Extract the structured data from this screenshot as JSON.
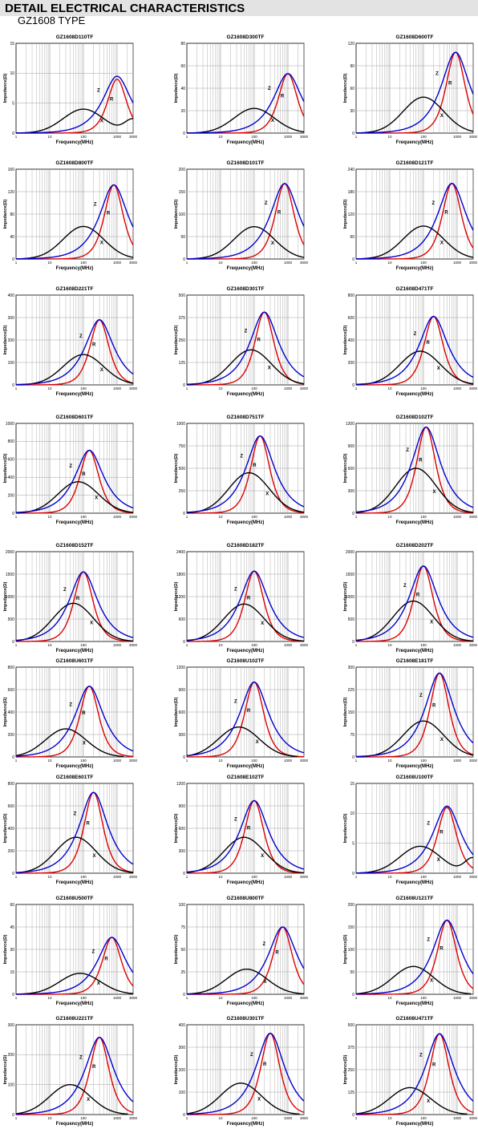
{
  "header": {
    "title": "DETAIL ELECTRICAL CHARACTERISTICS",
    "subtitle": "GZ1608 TYPE"
  },
  "colors": {
    "z": "#0000cc",
    "r": "#dd0000",
    "x": "#000000",
    "grid": "#a0a0a0",
    "header_bg": "#e3e3e3"
  },
  "axis_text": {
    "xlabel": "Frequency(MHz)",
    "ylabel": "Impedance(Ω)",
    "xticks": [
      "1",
      "10",
      "100",
      "1000",
      "3000"
    ]
  },
  "chart_data": [
    {
      "type": "line",
      "title": "GZ1608D110TF",
      "xlabel": "Frequency(MHz)",
      "ylabel": "Impedance(Ω)",
      "xscale": "log",
      "xlim": [
        1,
        3000
      ],
      "ylim": [
        0,
        15
      ],
      "yticks": [
        0,
        5,
        10,
        15
      ],
      "peak_freq": 1000,
      "peak_z": 9.5,
      "peak_r": 9,
      "x_peak": 4,
      "x_peak_freq": 100,
      "x_tail": "rise",
      "series": [
        {
          "name": "Z"
        },
        {
          "name": "R"
        },
        {
          "name": "X"
        }
      ]
    },
    {
      "type": "line",
      "title": "GZ1608D300TF",
      "xlabel": "Frequency(MHz)",
      "ylabel": "Impedance(Ω)",
      "xscale": "log",
      "xlim": [
        1,
        3000
      ],
      "ylim": [
        0,
        80
      ],
      "yticks": [
        0,
        20,
        40,
        60,
        80
      ],
      "peak_freq": 1000,
      "peak_z": 53,
      "peak_r": 53,
      "x_peak": 22,
      "x_peak_freq": 100,
      "x_tail": "fall",
      "series": [
        {
          "name": "Z"
        },
        {
          "name": "R"
        },
        {
          "name": "X"
        }
      ]
    },
    {
      "type": "line",
      "title": "GZ1608D600TF",
      "xlabel": "Frequency(MHz)",
      "ylabel": "Impedance(Ω)",
      "xscale": "log",
      "xlim": [
        1,
        3000
      ],
      "ylim": [
        0,
        120
      ],
      "yticks": [
        0,
        30,
        60,
        90,
        120
      ],
      "peak_freq": 900,
      "peak_z": 108,
      "peak_r": 108,
      "x_peak": 48,
      "x_peak_freq": 100,
      "x_tail": "fall",
      "series": [
        {
          "name": "Z"
        },
        {
          "name": "R"
        },
        {
          "name": "X"
        }
      ]
    },
    {
      "type": "line",
      "title": "GZ1608D800TF",
      "xlabel": "Frequency(MHz)",
      "ylabel": "Impedance(Ω)",
      "xscale": "log",
      "xlim": [
        1,
        3000
      ],
      "ylim": [
        0,
        160
      ],
      "yticks": [
        0,
        40,
        80,
        120,
        160
      ],
      "peak_freq": 800,
      "peak_z": 132,
      "peak_r": 132,
      "x_peak": 58,
      "x_peak_freq": 100,
      "x_tail": "fall",
      "series": [
        {
          "name": "Z"
        },
        {
          "name": "R"
        },
        {
          "name": "X"
        }
      ]
    },
    {
      "type": "line",
      "title": "GZ1608D101TF",
      "xlabel": "Frequency(MHz)",
      "ylabel": "Impedance(Ω)",
      "xscale": "log",
      "xlim": [
        1,
        3000
      ],
      "ylim": [
        0,
        200
      ],
      "yticks": [
        0,
        50,
        100,
        150,
        200
      ],
      "peak_freq": 800,
      "peak_z": 168,
      "peak_r": 168,
      "x_peak": 72,
      "x_peak_freq": 100,
      "x_tail": "fall",
      "series": [
        {
          "name": "Z"
        },
        {
          "name": "R"
        },
        {
          "name": "X"
        }
      ]
    },
    {
      "type": "line",
      "title": "GZ1608D121TF",
      "xlabel": "Frequency(MHz)",
      "ylabel": "Impedance(Ω)",
      "xscale": "log",
      "xlim": [
        1,
        3000
      ],
      "ylim": [
        0,
        240
      ],
      "yticks": [
        0,
        60,
        120,
        180,
        240
      ],
      "peak_freq": 700,
      "peak_z": 202,
      "peak_r": 202,
      "x_peak": 88,
      "x_peak_freq": 100,
      "x_tail": "fall",
      "series": [
        {
          "name": "Z"
        },
        {
          "name": "R"
        },
        {
          "name": "X"
        }
      ]
    },
    {
      "type": "line",
      "title": "GZ1608D221TF",
      "xlabel": "Frequency(MHz)",
      "ylabel": "Impedance(Ω)",
      "xscale": "log",
      "xlim": [
        1,
        3000
      ],
      "ylim": [
        0,
        400
      ],
      "yticks": [
        0,
        100,
        200,
        300,
        400
      ],
      "peak_freq": 300,
      "peak_z": 290,
      "peak_r": 290,
      "x_peak": 135,
      "x_peak_freq": 100,
      "x_tail": "fall",
      "series": [
        {
          "name": "Z"
        },
        {
          "name": "R"
        },
        {
          "name": "X"
        }
      ]
    },
    {
      "type": "line",
      "title": "GZ1608D301TF",
      "xlabel": "Frequency(MHz)",
      "ylabel": "Impedance(Ω)",
      "xscale": "log",
      "xlim": [
        1,
        3000
      ],
      "ylim": [
        0,
        500
      ],
      "yticks": [
        0,
        125,
        250,
        375,
        500
      ],
      "peak_freq": 200,
      "peak_z": 405,
      "peak_r": 405,
      "x_peak": 195,
      "x_peak_freq": 80,
      "x_tail": "fall",
      "series": [
        {
          "name": "Z"
        },
        {
          "name": "R"
        },
        {
          "name": "X"
        }
      ]
    },
    {
      "type": "line",
      "title": "GZ1608D471TF",
      "xlabel": "Frequency(MHz)",
      "ylabel": "Impedance(Ω)",
      "xscale": "log",
      "xlim": [
        1,
        3000
      ],
      "ylim": [
        0,
        800
      ],
      "yticks": [
        0,
        200,
        400,
        600,
        800
      ],
      "peak_freq": 200,
      "peak_z": 610,
      "peak_r": 610,
      "x_peak": 300,
      "x_peak_freq": 80,
      "x_tail": "fall",
      "series": [
        {
          "name": "Z"
        },
        {
          "name": "R"
        },
        {
          "name": "X"
        }
      ]
    },
    {
      "type": "line",
      "title": "GZ1608D601TF",
      "xlabel": "Frequency(MHz)",
      "ylabel": "Impedance(Ω)",
      "xscale": "log",
      "xlim": [
        1,
        3000
      ],
      "ylim": [
        0,
        1000
      ],
      "yticks": [
        0,
        200,
        400,
        600,
        800,
        1000
      ],
      "peak_freq": 150,
      "peak_z": 700,
      "peak_r": 700,
      "x_peak": 350,
      "x_peak_freq": 70,
      "x_tail": "fall",
      "series": [
        {
          "name": "Z"
        },
        {
          "name": "R"
        },
        {
          "name": "X"
        }
      ]
    },
    {
      "type": "line",
      "title": "GZ1608D751TF",
      "xlabel": "Frequency(MHz)",
      "ylabel": "Impedance(Ω)",
      "xscale": "log",
      "xlim": [
        1,
        3000
      ],
      "ylim": [
        0,
        1000
      ],
      "yticks": [
        0,
        250,
        500,
        750,
        1000
      ],
      "peak_freq": 150,
      "peak_z": 860,
      "peak_r": 860,
      "x_peak": 450,
      "x_peak_freq": 70,
      "x_tail": "fall",
      "series": [
        {
          "name": "Z"
        },
        {
          "name": "R"
        },
        {
          "name": "X"
        }
      ]
    },
    {
      "type": "line",
      "title": "GZ1608D102TF",
      "xlabel": "Frequency(MHz)",
      "ylabel": "Impedance(Ω)",
      "xscale": "log",
      "xlim": [
        1,
        3000
      ],
      "ylim": [
        0,
        1200
      ],
      "yticks": [
        0,
        300,
        600,
        900,
        1200
      ],
      "peak_freq": 120,
      "peak_z": 1150,
      "peak_r": 1150,
      "x_peak": 600,
      "x_peak_freq": 60,
      "x_tail": "fall",
      "series": [
        {
          "name": "Z"
        },
        {
          "name": "R"
        },
        {
          "name": "X"
        }
      ]
    },
    {
      "type": "line",
      "title": "GZ1608D152TF",
      "xlabel": "Frequency(MHz)",
      "ylabel": "Impedance(Ω)",
      "xscale": "log",
      "xlim": [
        1,
        3000
      ],
      "ylim": [
        0,
        2000
      ],
      "yticks": [
        0,
        500,
        1000,
        1500,
        2000
      ],
      "peak_freq": 100,
      "peak_z": 1550,
      "peak_r": 1550,
      "x_peak": 850,
      "x_peak_freq": 50,
      "x_tail": "fall",
      "series": [
        {
          "name": "Z"
        },
        {
          "name": "R"
        },
        {
          "name": "X"
        }
      ]
    },
    {
      "type": "line",
      "title": "GZ1608D182TF",
      "xlabel": "Frequency(MHz)",
      "ylabel": "Impedance(Ω)",
      "xscale": "log",
      "xlim": [
        1,
        3000
      ],
      "ylim": [
        0,
        2400
      ],
      "yticks": [
        0,
        600,
        1200,
        1800,
        2400
      ],
      "peak_freq": 100,
      "peak_z": 1880,
      "peak_r": 1880,
      "x_peak": 1000,
      "x_peak_freq": 50,
      "x_tail": "fall",
      "series": [
        {
          "name": "Z"
        },
        {
          "name": "R"
        },
        {
          "name": "X"
        }
      ]
    },
    {
      "type": "line",
      "title": "GZ1608D202TF",
      "xlabel": "Frequency(MHz)",
      "ylabel": "Impedance(Ω)",
      "xscale": "log",
      "xlim": [
        1,
        3000
      ],
      "ylim": [
        0,
        2000
      ],
      "yticks": [
        0,
        500,
        1000,
        1500,
        2000
      ],
      "peak_freq": 100,
      "peak_z": 1680,
      "peak_r": 1680,
      "x_peak": 900,
      "x_peak_freq": 50,
      "x_tail": "fall",
      "series": [
        {
          "name": "Z"
        },
        {
          "name": "R"
        },
        {
          "name": "X"
        }
      ]
    },
    {
      "type": "line",
      "title": "GZ1608U601TF",
      "xlabel": "Frequency(MHz)",
      "ylabel": "Impedance(Ω)",
      "xscale": "log",
      "xlim": [
        1,
        3000
      ],
      "ylim": [
        0,
        800
      ],
      "yticks": [
        0,
        200,
        400,
        600,
        800
      ],
      "peak_freq": 150,
      "peak_z": 630,
      "peak_r": 630,
      "x_peak": 250,
      "x_peak_freq": 30,
      "x_tail": "fall",
      "series": [
        {
          "name": "Z"
        },
        {
          "name": "R"
        },
        {
          "name": "X"
        }
      ]
    },
    {
      "type": "line",
      "title": "GZ1608U102TF",
      "xlabel": "Frequency(MHz)",
      "ylabel": "Impedance(Ω)",
      "xscale": "log",
      "xlim": [
        1,
        3000
      ],
      "ylim": [
        0,
        1200
      ],
      "yticks": [
        0,
        300,
        600,
        900,
        1200
      ],
      "peak_freq": 100,
      "peak_z": 1000,
      "peak_r": 1000,
      "x_peak": 400,
      "x_peak_freq": 35,
      "x_tail": "fall",
      "series": [
        {
          "name": "Z"
        },
        {
          "name": "R"
        },
        {
          "name": "X"
        }
      ]
    },
    {
      "type": "line",
      "title": "GZ1608E181TF",
      "xlabel": "Frequency(MHz)",
      "ylabel": "Impedance(Ω)",
      "xscale": "log",
      "xlim": [
        1,
        3000
      ],
      "ylim": [
        0,
        300
      ],
      "yticks": [
        0,
        75,
        150,
        225,
        300
      ],
      "peak_freq": 300,
      "peak_z": 280,
      "peak_r": 280,
      "x_peak": 120,
      "x_peak_freq": 100,
      "x_tail": "fall",
      "series": [
        {
          "name": "Z"
        },
        {
          "name": "R"
        },
        {
          "name": "X"
        }
      ]
    },
    {
      "type": "line",
      "title": "GZ1608E601TF",
      "xlabel": "Frequency(MHz)",
      "ylabel": "Impedance(Ω)",
      "xscale": "log",
      "xlim": [
        1,
        3000
      ],
      "ylim": [
        0,
        800
      ],
      "yticks": [
        0,
        200,
        400,
        600,
        800
      ],
      "peak_freq": 200,
      "peak_z": 720,
      "peak_r": 720,
      "x_peak": 320,
      "x_peak_freq": 60,
      "x_tail": "fall",
      "series": [
        {
          "name": "Z"
        },
        {
          "name": "R"
        },
        {
          "name": "X"
        }
      ]
    },
    {
      "type": "line",
      "title": "GZ1608E102TF",
      "xlabel": "Frequency(MHz)",
      "ylabel": "Impedance(Ω)",
      "xscale": "log",
      "xlim": [
        1,
        3000
      ],
      "ylim": [
        0,
        1200
      ],
      "yticks": [
        0,
        300,
        600,
        900,
        1200
      ],
      "peak_freq": 100,
      "peak_z": 970,
      "peak_r": 970,
      "x_peak": 480,
      "x_peak_freq": 50,
      "x_tail": "fall",
      "series": [
        {
          "name": "Z"
        },
        {
          "name": "R"
        },
        {
          "name": "X"
        }
      ]
    },
    {
      "type": "line",
      "title": "GZ1608U100TF",
      "xlabel": "Frequency(MHz)",
      "ylabel": "Impedance(Ω)",
      "xscale": "log",
      "xlim": [
        1,
        3000
      ],
      "ylim": [
        0,
        15
      ],
      "yticks": [
        0,
        5,
        10,
        15
      ],
      "peak_freq": 500,
      "peak_z": 11.2,
      "peak_r": 11,
      "x_peak": 4.5,
      "x_peak_freq": 80,
      "x_tail": "rise",
      "series": [
        {
          "name": "Z"
        },
        {
          "name": "R"
        },
        {
          "name": "X"
        }
      ]
    },
    {
      "type": "line",
      "title": "GZ1608U500TF",
      "xlabel": "Frequency(MHz)",
      "ylabel": "Impedance(Ω)",
      "xscale": "log",
      "xlim": [
        1,
        3000
      ],
      "ylim": [
        0,
        60
      ],
      "yticks": [
        0,
        15,
        30,
        45,
        60
      ],
      "peak_freq": 700,
      "peak_z": 38,
      "peak_r": 38,
      "x_peak": 14,
      "x_peak_freq": 80,
      "x_tail": "fall",
      "series": [
        {
          "name": "Z"
        },
        {
          "name": "R"
        },
        {
          "name": "X"
        }
      ]
    },
    {
      "type": "line",
      "title": "GZ1608U800TF",
      "xlabel": "Frequency(MHz)",
      "ylabel": "Impedance(Ω)",
      "xscale": "log",
      "xlim": [
        1,
        3000
      ],
      "ylim": [
        0,
        100
      ],
      "yticks": [
        0,
        25,
        50,
        75,
        100
      ],
      "peak_freq": 700,
      "peak_z": 75,
      "peak_r": 75,
      "x_peak": 28,
      "x_peak_freq": 60,
      "x_tail": "fall",
      "series": [
        {
          "name": "Z"
        },
        {
          "name": "R"
        },
        {
          "name": "X"
        }
      ]
    },
    {
      "type": "line",
      "title": "GZ1608U121TF",
      "xlabel": "Frequency(MHz)",
      "ylabel": "Impedance(Ω)",
      "xscale": "log",
      "xlim": [
        1,
        3000
      ],
      "ylim": [
        0,
        200
      ],
      "yticks": [
        0,
        50,
        100,
        150,
        200
      ],
      "peak_freq": 500,
      "peak_z": 165,
      "peak_r": 165,
      "x_peak": 62,
      "x_peak_freq": 50,
      "x_tail": "fall",
      "series": [
        {
          "name": "Z"
        },
        {
          "name": "R"
        },
        {
          "name": "X"
        }
      ]
    },
    {
      "type": "line",
      "title": "GZ1608U221TF",
      "xlabel": "Frequency(MHz)",
      "ylabel": "Impedance(Ω)",
      "xscale": "log",
      "xlim": [
        1,
        3000
      ],
      "ylim": [
        0,
        300
      ],
      "yticks": [
        0,
        100,
        200,
        300
      ],
      "peak_freq": 300,
      "peak_z": 258,
      "peak_r": 258,
      "x_peak": 100,
      "x_peak_freq": 40,
      "x_tail": "fall",
      "series": [
        {
          "name": "Z"
        },
        {
          "name": "R"
        },
        {
          "name": "X"
        }
      ]
    },
    {
      "type": "line",
      "title": "GZ1608U301TF",
      "xlabel": "Frequency(MHz)",
      "ylabel": "Impedance(Ω)",
      "xscale": "log",
      "xlim": [
        1,
        3000
      ],
      "ylim": [
        0,
        400
      ],
      "yticks": [
        0,
        100,
        200,
        300,
        400
      ],
      "peak_freq": 300,
      "peak_z": 362,
      "peak_r": 362,
      "x_peak": 140,
      "x_peak_freq": 40,
      "x_tail": "fall",
      "series": [
        {
          "name": "Z"
        },
        {
          "name": "R"
        },
        {
          "name": "X"
        }
      ]
    },
    {
      "type": "line",
      "title": "GZ1608U471TF",
      "xlabel": "Frequency(MHz)",
      "ylabel": "Impedance(Ω)",
      "xscale": "log",
      "xlim": [
        1,
        3000
      ],
      "ylim": [
        0,
        500
      ],
      "yticks": [
        0,
        125,
        250,
        375,
        500
      ],
      "peak_freq": 300,
      "peak_z": 450,
      "peak_r": 450,
      "x_peak": 150,
      "x_peak_freq": 40,
      "x_tail": "fall",
      "series": [
        {
          "name": "Z"
        },
        {
          "name": "R"
        },
        {
          "name": "X"
        }
      ]
    }
  ]
}
